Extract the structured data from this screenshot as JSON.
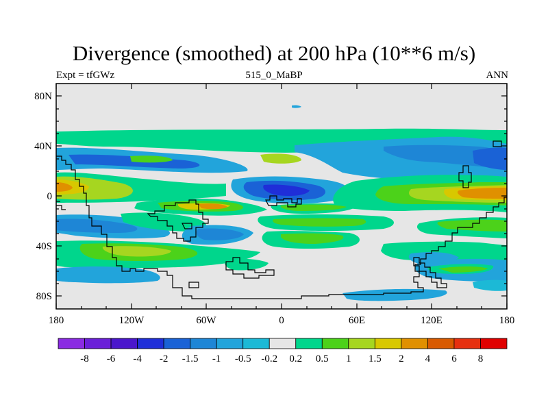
{
  "title": "Divergence (smoothed) at 200 hPa (10**6 m/s)",
  "subtitle_left": "Expt = tfGWz",
  "subtitle_center": "515_0_MaBP",
  "subtitle_right": "ANN",
  "y_labels": [
    "80N",
    "40N",
    "0",
    "40S",
    "80S"
  ],
  "x_labels": [
    "180",
    "120W",
    "60W",
    "0",
    "60E",
    "120E",
    "180"
  ],
  "colorbar": {
    "labels": [
      "-8",
      "-6",
      "-4",
      "-2",
      "-1.5",
      "-1",
      "-0.5",
      "-0.2",
      "0.2",
      "0.5",
      "1",
      "1.5",
      "2",
      "4",
      "6",
      "8"
    ],
    "colors": [
      "#8a2be2",
      "#6a1fd8",
      "#4a16cc",
      "#1f2ed8",
      "#1a62d6",
      "#1e86d6",
      "#22a4db",
      "#1cb9d6",
      "#e6e6e6",
      "#00d68c",
      "#4cd21a",
      "#a6d620",
      "#d8c800",
      "#e09000",
      "#d85a00",
      "#e63010",
      "#e00000"
    ]
  },
  "chart_data": {
    "type": "heatmap",
    "title": "Divergence (smoothed) at 200 hPa (10**6 m/s)",
    "experiment": "tfGWz",
    "period": "515_0_MaBP",
    "season": "ANN",
    "xlim": [
      -180,
      180
    ],
    "ylim": [
      -90,
      90
    ],
    "contour_levels": [
      -8,
      -6,
      -4,
      -2,
      -1.5,
      -1,
      -0.5,
      -0.2,
      0.2,
      0.5,
      1,
      1.5,
      2,
      4,
      6,
      8
    ]
  }
}
